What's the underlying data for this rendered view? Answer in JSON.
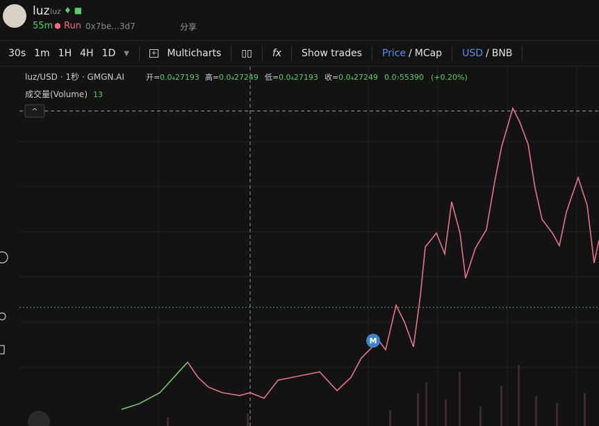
{
  "header": {
    "name": "luz",
    "ticker": "luz",
    "age": "55m",
    "status": "Run",
    "address": "0x7be...3d7",
    "share": "分享"
  },
  "toolbar": {
    "intervals": [
      "30s",
      "1m",
      "1H",
      "4H",
      "1D"
    ],
    "multicharts": "Multicharts",
    "show_trades": "Show trades",
    "price": "Price",
    "sep1": "/",
    "mcap": "MCap",
    "usd": "USD",
    "sep2": "/",
    "bnb": "BNB"
  },
  "legend": {
    "symbol": "luz/USD · 1秒 · GMGN.AI",
    "open_label": "开=",
    "open": "0.0₄27193",
    "high_label": "高=",
    "high": "0.0₄27249",
    "low_label": "低=",
    "low": "0.0₄27193",
    "close_label": "收=",
    "close": "0.0₄27249",
    "change": "0.0₇55390",
    "change_pct": "(+0.20%)",
    "volume_label": "成交量(Volume)",
    "volume": "13"
  },
  "marker": "M"
}
